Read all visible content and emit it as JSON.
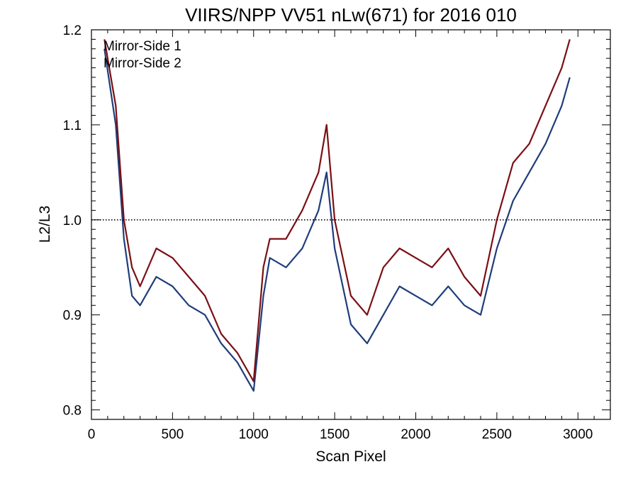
{
  "chart_data": {
    "type": "line",
    "title": "VIIRS/NPP VV51 nLw(671) for 2016 010",
    "xlabel": "Scan Pixel",
    "ylabel": "L2/L3",
    "xlim": [
      0,
      3200
    ],
    "ylim": [
      0.79,
      1.2
    ],
    "xticks": [
      0,
      500,
      1000,
      1500,
      2000,
      2500,
      3000
    ],
    "yticks": [
      0.8,
      0.9,
      1.0,
      1.1,
      1.2
    ],
    "xtick_labels": [
      "0",
      "500",
      "1000",
      "1500",
      "2000",
      "2500",
      "3000"
    ],
    "ytick_labels": [
      "0.8",
      "0.9",
      "1.0",
      "1.1",
      "1.2"
    ],
    "reference_line": {
      "y": 1.0,
      "style": "dotted"
    },
    "grid": false,
    "legend_position": "top-left",
    "colors": {
      "mirror_side_1": "#1f3d7a",
      "mirror_side_2": "#7a0f14"
    },
    "series": [
      {
        "name": "Mirror-Side 1",
        "color": "#1f3d7a",
        "x": [
          80,
          150,
          200,
          250,
          300,
          400,
          500,
          600,
          700,
          800,
          900,
          1000,
          1060,
          1100,
          1200,
          1300,
          1400,
          1450,
          1500,
          1600,
          1700,
          1800,
          1900,
          2000,
          2100,
          2200,
          2300,
          2400,
          2500,
          2600,
          2700,
          2800,
          2900,
          2950
        ],
        "y": [
          1.18,
          1.1,
          0.98,
          0.92,
          0.91,
          0.94,
          0.93,
          0.91,
          0.9,
          0.87,
          0.85,
          0.82,
          0.92,
          0.96,
          0.95,
          0.97,
          1.01,
          1.05,
          0.97,
          0.89,
          0.87,
          0.9,
          0.93,
          0.92,
          0.91,
          0.93,
          0.91,
          0.9,
          0.97,
          1.02,
          1.05,
          1.08,
          1.12,
          1.15
        ]
      },
      {
        "name": "Mirror-Side 2",
        "color": "#7a0f14",
        "x": [
          80,
          150,
          200,
          250,
          300,
          400,
          500,
          600,
          700,
          800,
          900,
          1000,
          1060,
          1100,
          1200,
          1300,
          1400,
          1450,
          1500,
          1600,
          1700,
          1800,
          1900,
          2000,
          2100,
          2200,
          2300,
          2400,
          2500,
          2600,
          2700,
          2800,
          2900,
          2950
        ],
        "y": [
          1.19,
          1.12,
          1.0,
          0.95,
          0.93,
          0.97,
          0.96,
          0.94,
          0.92,
          0.88,
          0.86,
          0.83,
          0.95,
          0.98,
          0.98,
          1.01,
          1.05,
          1.1,
          1.0,
          0.92,
          0.9,
          0.95,
          0.97,
          0.96,
          0.95,
          0.97,
          0.94,
          0.92,
          1.0,
          1.06,
          1.08,
          1.12,
          1.16,
          1.19
        ]
      }
    ]
  }
}
